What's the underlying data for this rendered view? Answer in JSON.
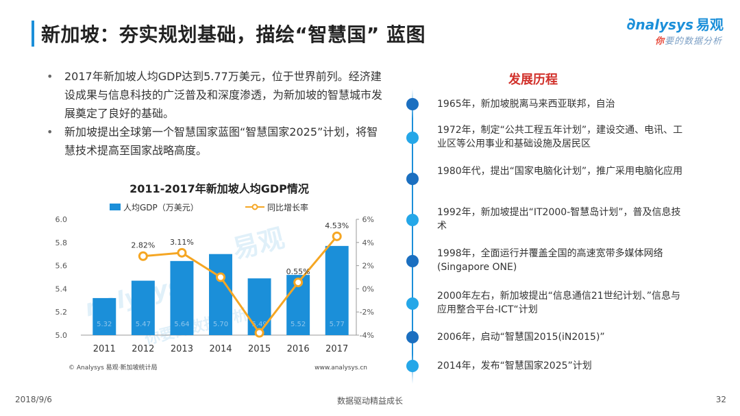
{
  "title": "新加坡：夯实规划基础，描绘“智慧国” 蓝图",
  "brand": {
    "logo": "nalysys",
    "logo_cn": "易观",
    "tagline_hl": "你",
    "tagline": "要的数据分析",
    "color": "#1b8fd9"
  },
  "bullets": [
    "2017年新加坡人均GDP达到5.77万美元，位于世界前列。经济建设成果与信息科技的广泛普及和深度渗透，为新加坡的智慧城市发展奠定了良好的基础。",
    "新加坡提出全球第一个智慧国家蓝图“智慧国家2025”计划，将智慧技术提高至国家战略高度。"
  ],
  "chart_data": {
    "type": "bar",
    "title": "2011-2017年新加坡人均GDP情况",
    "categories": [
      "2011",
      "2012",
      "2013",
      "2014",
      "2015",
      "2016",
      "2017"
    ],
    "series": [
      {
        "name": "人均GDP（万美元）",
        "type": "bar",
        "axis": "left",
        "color": "#1b8fd9",
        "values": [
          5.32,
          5.47,
          5.64,
          5.7,
          5.49,
          5.52,
          5.77
        ]
      },
      {
        "name": "同比增长率",
        "type": "line",
        "axis": "right",
        "color": "#f5a623",
        "values": [
          null,
          2.82,
          3.11,
          1.0,
          -3.8,
          0.55,
          4.53
        ],
        "point_labels": [
          "",
          "2.82%",
          "3.11%",
          "",
          "",
          "0.55%",
          "4.53%"
        ]
      }
    ],
    "ylim": [
      5.0,
      6.0
    ],
    "y_ticks": [
      "5.0",
      "5.2",
      "5.4",
      "5.6",
      "5.8",
      "6.0"
    ],
    "y2lim": [
      -4,
      6
    ],
    "y2_ticks": [
      "-4%",
      "-2%",
      "0%",
      "2%",
      "4%",
      "6%"
    ],
    "legend": "top"
  },
  "chart_footer": {
    "source": "© Analysys 易观·新加坡统计局",
    "url": "www.analysys.cn"
  },
  "timeline": {
    "heading": "发展历程",
    "line_color": "#1b8fd9",
    "items": [
      {
        "text": "1965年，新加坡脱离马来西亚联邦，自治",
        "color": "#1b6fc0"
      },
      {
        "text": "1972年，制定“公共工程五年计划”，建设交通、电讯、工业区等公用事业和基础设施及居民区",
        "color": "#25a7e8"
      },
      {
        "text": "1980年代，提出“国家电脑化计划”，推广采用电脑化应用",
        "color": "#1b6fc0"
      },
      {
        "text": "1992年，新加坡提出“IT2000-智慧岛计划”，普及信息技术",
        "color": "#25a7e8"
      },
      {
        "text": "1998年，全面运行并覆盖全国的高速宽带多媒体网络(Singapore ONE)",
        "color": "#1b6fc0"
      },
      {
        "text": "2000年左右，新加坡提出“信息通信21世纪计划、”信息与应用整合平台-ICT“计划",
        "color": "#25a7e8"
      },
      {
        "text": "2006年，启动“智慧国2015(iN2015)”",
        "color": "#1b6fc0"
      },
      {
        "text": "2014年，发布“智慧国家2025”计划",
        "color": "#25a7e8"
      }
    ]
  },
  "footer": {
    "date": "2018/9/6",
    "slogan": "数据驱动精益成长",
    "page": "32"
  }
}
